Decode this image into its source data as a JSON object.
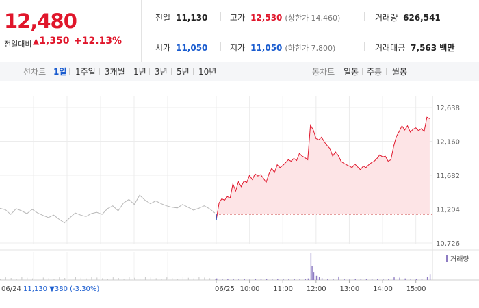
{
  "header": {
    "price": "12,480",
    "change_label": "전일대비",
    "change_arrow": "▲",
    "change_amount": "1,350",
    "change_percent": "+12.13%",
    "prev_close_label": "전일",
    "prev_close": "11,130",
    "high_label": "고가",
    "high": "12,530",
    "upper_limit": "(상한가 14,460)",
    "volume_label": "거래량",
    "volume": "626,541",
    "open_label": "시가",
    "open": "11,050",
    "low_label": "저가",
    "low": "11,050",
    "lower_limit": "(하한가 7,800)",
    "value_label": "거래대금",
    "value": "7,563 백만"
  },
  "toolbar": {
    "line_chart_label": "선차트",
    "periods": [
      "1일",
      "1주일",
      "3개월",
      "1년",
      "3년",
      "5년",
      "10년"
    ],
    "active_period": "1일",
    "candle_label": "봉차트",
    "candle_periods": [
      "일봉",
      "주봉",
      "월봉"
    ]
  },
  "chart_data": {
    "type": "line",
    "prev_day_label": "06/24",
    "prev_day_summary": "11,130 ▼380 (-3.30%)",
    "x_tick_labels": [
      "06/25",
      "10:00",
      "11:00",
      "12:00",
      "13:00",
      "14:00",
      "15:00"
    ],
    "y_tick_labels": [
      "12,638",
      "12,160",
      "11,682",
      "11,204",
      "10,726"
    ],
    "ylim": [
      10726,
      12638
    ],
    "reference_price": 11130,
    "volume_legend": "거래량",
    "prev_day_series": [
      [
        0,
        11215
      ],
      [
        0.25,
        11195
      ],
      [
        0.5,
        11130
      ],
      [
        0.75,
        11210
      ],
      [
        1,
        11180
      ],
      [
        1.25,
        11140
      ],
      [
        1.5,
        11200
      ],
      [
        1.75,
        11150
      ],
      [
        2,
        11115
      ],
      [
        2.25,
        11085
      ],
      [
        2.5,
        11120
      ],
      [
        2.75,
        11060
      ],
      [
        3,
        11010
      ],
      [
        3.25,
        11080
      ],
      [
        3.5,
        11150
      ],
      [
        3.75,
        11120
      ],
      [
        4,
        11100
      ],
      [
        4.25,
        11140
      ],
      [
        4.5,
        11160
      ],
      [
        4.75,
        11130
      ],
      [
        5,
        11210
      ],
      [
        5.25,
        11250
      ],
      [
        5.5,
        11180
      ],
      [
        5.75,
        11290
      ],
      [
        6,
        11340
      ],
      [
        6.25,
        11270
      ],
      [
        6.5,
        11400
      ],
      [
        6.75,
        11330
      ],
      [
        7,
        11280
      ],
      [
        7.25,
        11320
      ],
      [
        7.5,
        11280
      ],
      [
        7.75,
        11250
      ],
      [
        8,
        11230
      ],
      [
        8.25,
        11220
      ],
      [
        8.5,
        11270
      ],
      [
        8.75,
        11230
      ],
      [
        9,
        11190
      ],
      [
        9.25,
        11215
      ],
      [
        9.5,
        11250
      ],
      [
        9.75,
        11210
      ],
      [
        10,
        11150
      ]
    ],
    "today_series": [
      [
        "09:00",
        11050
      ],
      [
        "09:05",
        11290
      ],
      [
        "09:10",
        11350
      ],
      [
        "09:15",
        11330
      ],
      [
        "09:20",
        11380
      ],
      [
        "09:25",
        11360
      ],
      [
        "09:30",
        11560
      ],
      [
        "09:35",
        11460
      ],
      [
        "09:40",
        11590
      ],
      [
        "09:45",
        11520
      ],
      [
        "09:50",
        11600
      ],
      [
        "09:55",
        11580
      ],
      [
        "10:00",
        11680
      ],
      [
        "10:05",
        11620
      ],
      [
        "10:10",
        11700
      ],
      [
        "10:15",
        11670
      ],
      [
        "10:20",
        11690
      ],
      [
        "10:25",
        11640
      ],
      [
        "10:30",
        11580
      ],
      [
        "10:35",
        11700
      ],
      [
        "10:40",
        11780
      ],
      [
        "10:45",
        11720
      ],
      [
        "10:50",
        11830
      ],
      [
        "10:55",
        11790
      ],
      [
        "11:00",
        11820
      ],
      [
        "11:05",
        11860
      ],
      [
        "11:10",
        11900
      ],
      [
        "11:15",
        11880
      ],
      [
        "11:20",
        11920
      ],
      [
        "11:25",
        11890
      ],
      [
        "11:30",
        11990
      ],
      [
        "11:35",
        11950
      ],
      [
        "11:40",
        11930
      ],
      [
        "11:45",
        11900
      ],
      [
        "11:50",
        12390
      ],
      [
        "11:55",
        12320
      ],
      [
        "12:00",
        12200
      ],
      [
        "12:05",
        12180
      ],
      [
        "12:10",
        12220
      ],
      [
        "12:15",
        12150
      ],
      [
        "12:20",
        12100
      ],
      [
        "12:25",
        12060
      ],
      [
        "12:30",
        11950
      ],
      [
        "12:35",
        12010
      ],
      [
        "12:40",
        11960
      ],
      [
        "12:45",
        11880
      ],
      [
        "12:50",
        11850
      ],
      [
        "12:55",
        11830
      ],
      [
        "13:00",
        11810
      ],
      [
        "13:05",
        11790
      ],
      [
        "13:10",
        11840
      ],
      [
        "13:15",
        11800
      ],
      [
        "13:20",
        11760
      ],
      [
        "13:25",
        11810
      ],
      [
        "13:30",
        11790
      ],
      [
        "13:35",
        11830
      ],
      [
        "13:40",
        11860
      ],
      [
        "13:45",
        11880
      ],
      [
        "13:50",
        11920
      ],
      [
        "13:55",
        11970
      ],
      [
        "14:00",
        11940
      ],
      [
        "14:05",
        11950
      ],
      [
        "14:10",
        11880
      ],
      [
        "14:15",
        11900
      ],
      [
        "14:20",
        12090
      ],
      [
        "14:25",
        12230
      ],
      [
        "14:30",
        12300
      ],
      [
        "14:35",
        12380
      ],
      [
        "14:40",
        12320
      ],
      [
        "14:45",
        12380
      ],
      [
        "14:50",
        12290
      ],
      [
        "14:55",
        12330
      ],
      [
        "15:00",
        12350
      ],
      [
        "15:05",
        12310
      ],
      [
        "15:10",
        12340
      ],
      [
        "15:15",
        12300
      ],
      [
        "15:20",
        12500
      ],
      [
        "15:25",
        12480
      ]
    ],
    "today_volume": [
      [
        "09:00",
        60
      ],
      [
        "09:10",
        25
      ],
      [
        "09:20",
        18
      ],
      [
        "09:30",
        40
      ],
      [
        "09:40",
        22
      ],
      [
        "09:50",
        30
      ],
      [
        "10:00",
        28
      ],
      [
        "10:10",
        15
      ],
      [
        "10:20",
        12
      ],
      [
        "10:30",
        22
      ],
      [
        "10:40",
        26
      ],
      [
        "10:50",
        18
      ],
      [
        "11:00",
        16
      ],
      [
        "11:10",
        12
      ],
      [
        "11:20",
        14
      ],
      [
        "11:30",
        20
      ],
      [
        "11:40",
        45
      ],
      [
        "11:45",
        60
      ],
      [
        "11:50",
        1000
      ],
      [
        "11:52",
        520
      ],
      [
        "11:55",
        280
      ],
      [
        "12:00",
        160
      ],
      [
        "12:05",
        110
      ],
      [
        "12:10",
        70
      ],
      [
        "12:20",
        50
      ],
      [
        "12:30",
        40
      ],
      [
        "12:40",
        130
      ],
      [
        "12:50",
        35
      ],
      [
        "13:00",
        25
      ],
      [
        "13:10",
        20
      ],
      [
        "13:20",
        18
      ],
      [
        "13:30",
        15
      ],
      [
        "13:40",
        22
      ],
      [
        "13:50",
        20
      ],
      [
        "14:00",
        30
      ],
      [
        "14:10",
        25
      ],
      [
        "14:20",
        100
      ],
      [
        "14:30",
        90
      ],
      [
        "14:40",
        60
      ],
      [
        "14:50",
        40
      ],
      [
        "15:00",
        35
      ],
      [
        "15:10",
        30
      ],
      [
        "15:20",
        120
      ],
      [
        "15:25",
        200
      ]
    ],
    "prev_day_volume_level": 0.08
  }
}
